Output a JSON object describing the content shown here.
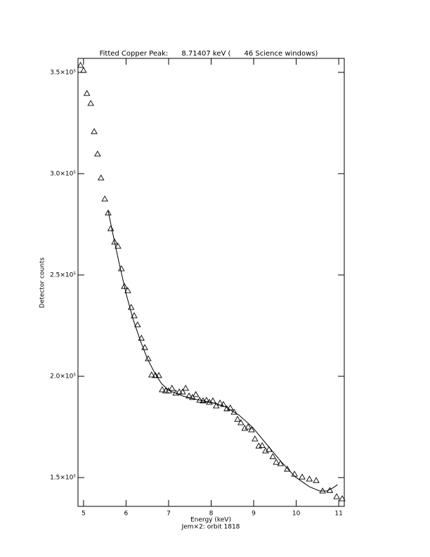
{
  "chart_data": {
    "type": "scatter",
    "title": "Fitted Copper Peak:      8.71407 keV (      46 Science windows)",
    "x_label": "Energy (keV)",
    "subtitle": "Jem×2: orbit 1818",
    "y_label": "Detector counts",
    "xlim": [
      4.87,
      11.13
    ],
    "ylim": [
      135800,
      356900
    ],
    "xticks": [
      5,
      6,
      7,
      8,
      9,
      10,
      11
    ],
    "yticks": [
      {
        "value": 150000,
        "label": "1.5×10⁵"
      },
      {
        "value": 200000,
        "label": "2.0×10⁵"
      },
      {
        "value": 250000,
        "label": "2.5×10⁵"
      },
      {
        "value": 300000,
        "label": "3.0×10⁵"
      },
      {
        "value": 350000,
        "label": "3.5×10⁵"
      }
    ],
    "series": [
      {
        "marker": "triangle",
        "color": "#000000",
        "x": [
          4.93,
          5.0,
          5.08,
          5.17,
          5.25,
          5.33,
          5.41,
          5.5,
          5.58,
          5.64,
          5.73,
          5.81,
          5.89,
          5.96,
          6.04,
          6.12,
          6.19,
          6.27,
          6.36,
          6.44,
          6.52,
          6.6,
          6.69,
          6.77,
          6.85,
          6.93,
          7.0,
          7.08,
          7.17,
          7.25,
          7.33,
          7.4,
          7.48,
          7.56,
          7.64,
          7.73,
          7.81,
          7.89,
          7.96,
          8.04,
          8.12,
          8.21,
          8.29,
          8.37,
          8.45,
          8.54,
          8.62,
          8.7,
          8.79,
          8.87,
          8.95,
          9.03,
          9.12,
          9.2,
          9.28,
          9.36,
          9.45,
          9.53,
          9.63,
          9.79,
          9.96,
          10.14,
          10.31,
          10.47,
          10.62,
          10.79,
          10.95,
          11.08
        ],
        "values": [
          353500,
          351000,
          339600,
          334700,
          320800,
          309700,
          297900,
          287500,
          280600,
          272900,
          266300,
          264200,
          253100,
          244400,
          242300,
          234000,
          229900,
          225400,
          218800,
          214200,
          208700,
          200700,
          200400,
          200400,
          193400,
          192800,
          192800,
          194100,
          191700,
          192300,
          192300,
          194100,
          190300,
          189600,
          191000,
          188200,
          187900,
          188200,
          187200,
          187900,
          185400,
          186800,
          186100,
          184000,
          184400,
          182300,
          178800,
          177100,
          174300,
          175000,
          173600,
          169100,
          165600,
          165800,
          163200,
          163900,
          160400,
          157600,
          156900,
          154200,
          151700,
          150300,
          149300,
          148600,
          143400,
          143700,
          140600,
          139600
        ]
      },
      {
        "style": "line",
        "color": "#000000",
        "x": [
          5.58,
          5.68,
          5.84,
          6.01,
          6.17,
          6.34,
          6.5,
          6.67,
          6.83,
          7.0,
          7.33,
          7.66,
          7.99,
          8.32,
          8.65,
          8.98,
          9.31,
          9.64,
          9.98,
          10.31,
          10.55,
          10.72,
          10.88,
          10.97
        ],
        "values": [
          281600,
          271200,
          255600,
          240000,
          227800,
          217400,
          208700,
          201800,
          196500,
          193100,
          190300,
          188500,
          187200,
          185100,
          180900,
          174700,
          166300,
          158000,
          150300,
          145500,
          143400,
          143400,
          145100,
          146500
        ]
      }
    ]
  }
}
